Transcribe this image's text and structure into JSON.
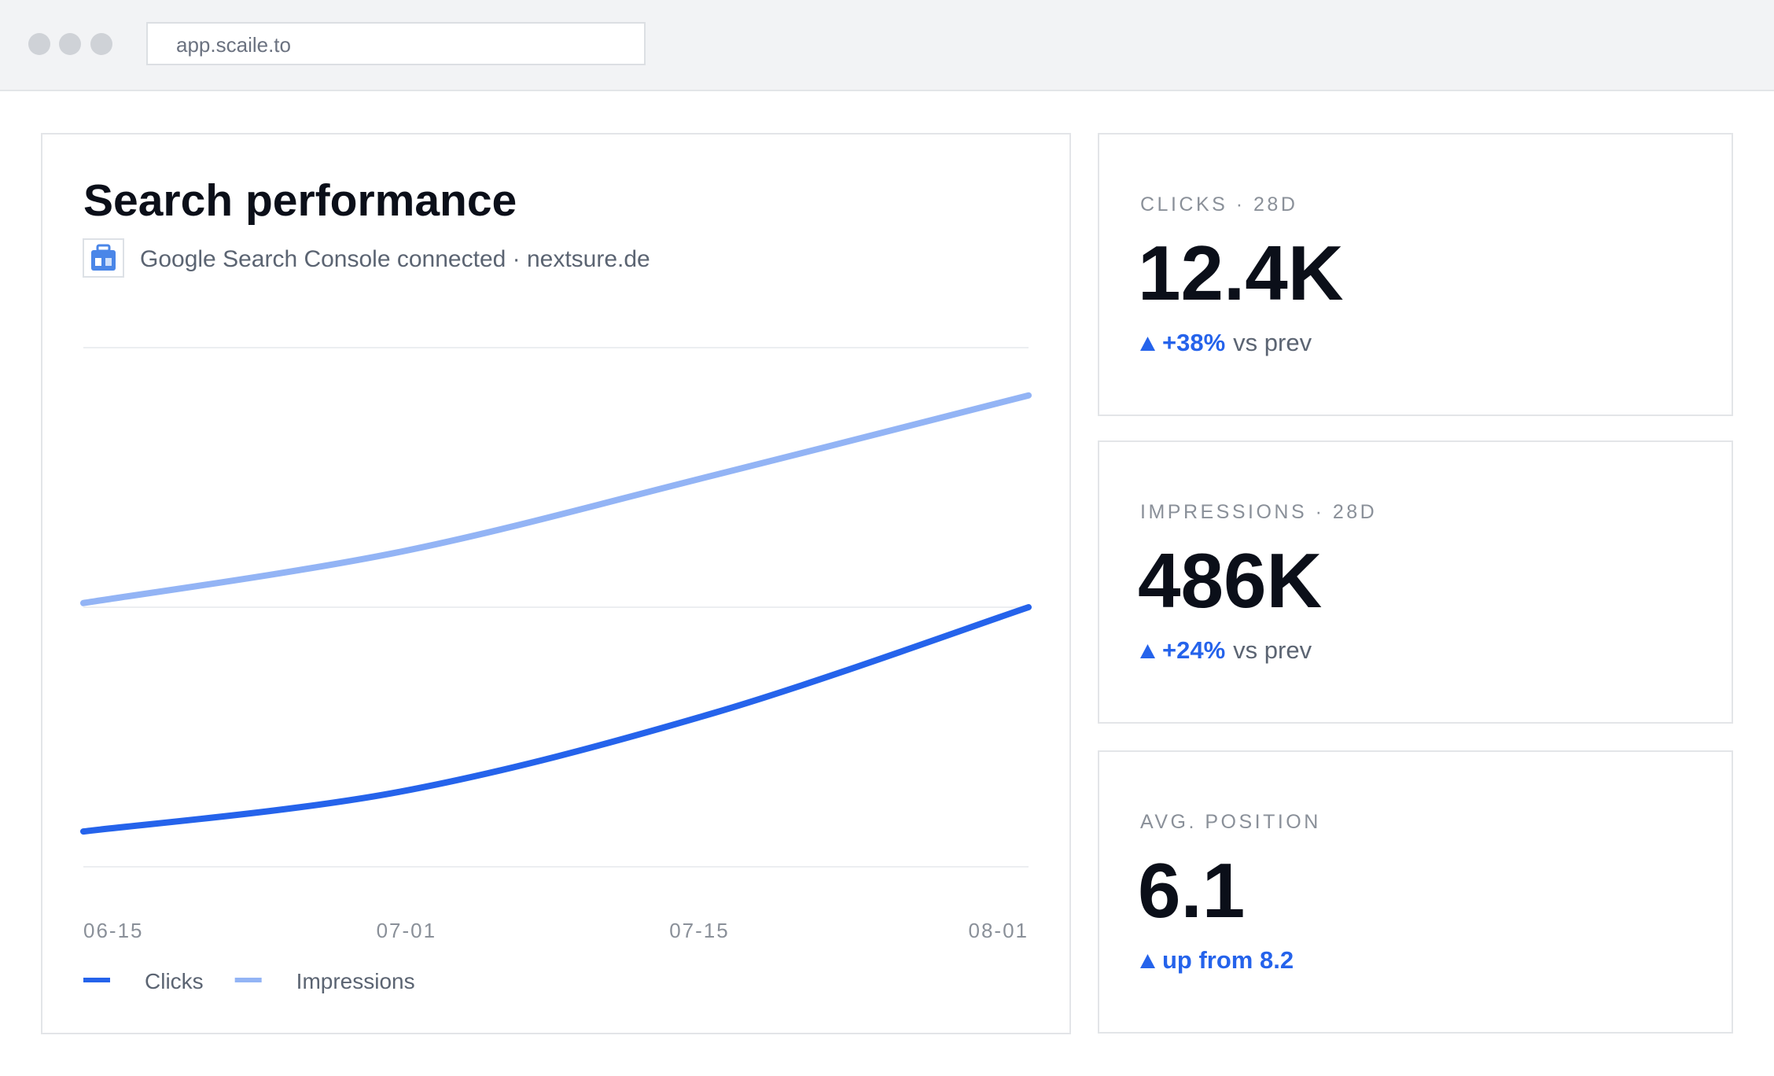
{
  "browser": {
    "url": "app.scaile.to"
  },
  "chart_data": {
    "type": "line",
    "title": "Search performance",
    "subtitle": "Google Search Console connected · nextsure.de",
    "x": [
      "06-15",
      "07-01",
      "07-15",
      "08-01"
    ],
    "series": [
      {
        "name": "Clicks",
        "color": "#2563eb",
        "values": [
          6.8,
          14.4,
          29.6,
          50
        ]
      },
      {
        "name": "Impressions",
        "color": "#93b4f5",
        "values": [
          50.8,
          60.6,
          75.4,
          90.8
        ]
      }
    ],
    "ylim": [
      0,
      100
    ],
    "gridlines": [
      0,
      50,
      100
    ],
    "legend": "bottom-left"
  },
  "kpis": [
    {
      "label": "CLICKS · 28D",
      "value": "12.4K",
      "delta": "+38%",
      "note": "vs prev"
    },
    {
      "label": "IMPRESSIONS · 28D",
      "value": "486K",
      "delta": "+24%",
      "note": "vs prev"
    },
    {
      "label": "AVG. POSITION",
      "value": "6.1",
      "delta": "up from 8.2"
    }
  ]
}
